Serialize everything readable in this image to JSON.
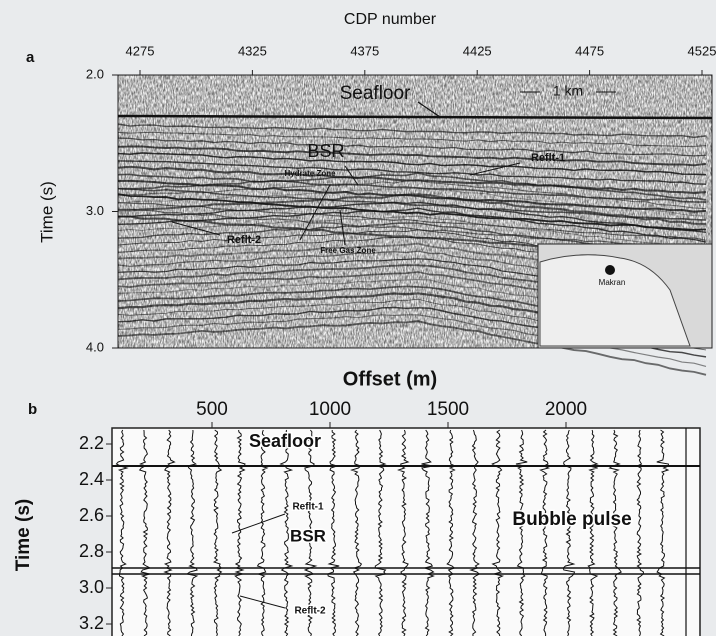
{
  "panel_a": {
    "label": "a",
    "x_title": "CDP number",
    "x_ticks": [
      "4275",
      "4325",
      "4375",
      "4425",
      "4475",
      "4525"
    ],
    "y_title": "Time (s)",
    "y_ticks": [
      "2.0",
      "3.0",
      "4.0"
    ],
    "annotations": {
      "seafloor": "Seafloor",
      "scale": "1 km",
      "bsr": "BSR",
      "reflt1": "Reflt-1",
      "hydrate": "Hydrate Zone",
      "reflt2": "Reflt-2",
      "free_gas": "Free Gas Zone",
      "inset": "Makran"
    }
  },
  "panel_b": {
    "label": "b",
    "x_title": "Offset (m)",
    "x_ticks": [
      "500",
      "1000",
      "1500",
      "2000"
    ],
    "y_title": "Time (s)",
    "y_ticks": [
      "2.2",
      "2.4",
      "2.6",
      "2.8",
      "3.0",
      "3.2"
    ],
    "annotations": {
      "seafloor": "Seafloor",
      "reflt1": "Reflt-1",
      "bsr": "BSR",
      "bubble": "Bubble pulse",
      "reflt2": "Reflt-2"
    }
  }
}
